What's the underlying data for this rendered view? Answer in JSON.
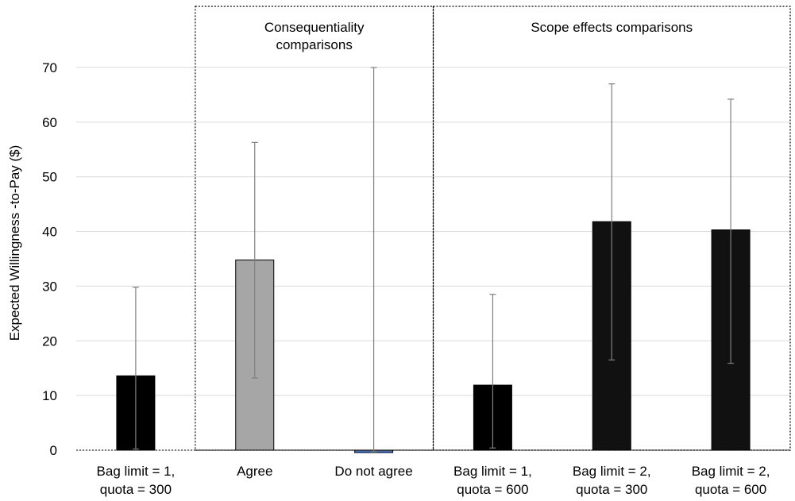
{
  "chart_data": {
    "type": "bar",
    "ylabel": "Expected Willingness -to-Pay ($)",
    "ylim": [
      0,
      70
    ],
    "yticks": [
      0,
      10,
      20,
      30,
      40,
      50,
      60,
      70
    ],
    "grid": "horizontal",
    "categories": [
      [
        "Bag limit = 1,",
        "quota = 300"
      ],
      [
        "Agree"
      ],
      [
        "Do not agree"
      ],
      [
        "Bag limit = 1,",
        "quota = 600"
      ],
      [
        "Bag limit = 2,",
        "quota = 300"
      ],
      [
        "Bag limit = 2,",
        "quota = 600"
      ]
    ],
    "values": [
      13.6,
      34.8,
      -0.3,
      11.9,
      41.8,
      40.3
    ],
    "error_low": [
      0.2,
      13.2,
      -0.3,
      0.4,
      16.5,
      15.9
    ],
    "error_high": [
      29.8,
      56.3,
      70,
      28.5,
      67.0,
      64.2
    ],
    "bar_colors": [
      "#000000",
      "#a6a6a6",
      "#4472c4",
      "#000000",
      "#111111",
      "#111111"
    ],
    "groups": [
      {
        "label": [
          "Consequentiality",
          "comparisons"
        ],
        "from": 1,
        "to": 2
      },
      {
        "label": [
          "Scope effects comparisons"
        ],
        "from": 3,
        "to": 5
      }
    ]
  }
}
